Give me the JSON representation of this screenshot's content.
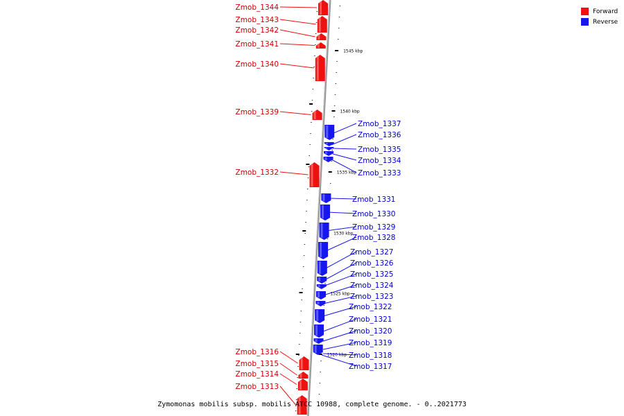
{
  "colors": {
    "forward": "#ee1111",
    "reverse": "#1616ee",
    "axis": "#999999"
  },
  "legend": [
    {
      "label": "Forward",
      "color": "#ee1111"
    },
    {
      "label": "Reverse",
      "color": "#1616ee"
    }
  ],
  "caption": "Zymomonas mobilis subsp. mobilis ATCC 10988, complete genome. - 0..2021773",
  "ticks": [
    "1545 kbp",
    "1540 kbp",
    "1535 kbp",
    "1530 kbp",
    "1525 kbp",
    "1520 kbp"
  ],
  "forward_genes": [
    "Zmob_1344",
    "Zmob_1343",
    "Zmob_1342",
    "Zmob_1341",
    "Zmob_1340",
    "Zmob_1339",
    "Zmob_1332",
    "Zmob_1316",
    "Zmob_1315",
    "Zmob_1314",
    "Zmob_1313"
  ],
  "reverse_genes": [
    "Zmob_1337",
    "Zmob_1336",
    "Zmob_1335",
    "Zmob_1334",
    "Zmob_1333",
    "Zmob_1331",
    "Zmob_1330",
    "Zmob_1329",
    "Zmob_1328",
    "Zmob_1327",
    "Zmob_1326",
    "Zmob_1325",
    "Zmob_1324",
    "Zmob_1323",
    "Zmob_1322",
    "Zmob_1321",
    "Zmob_1320",
    "Zmob_1319",
    "Zmob_1318",
    "Zmob_1317"
  ]
}
